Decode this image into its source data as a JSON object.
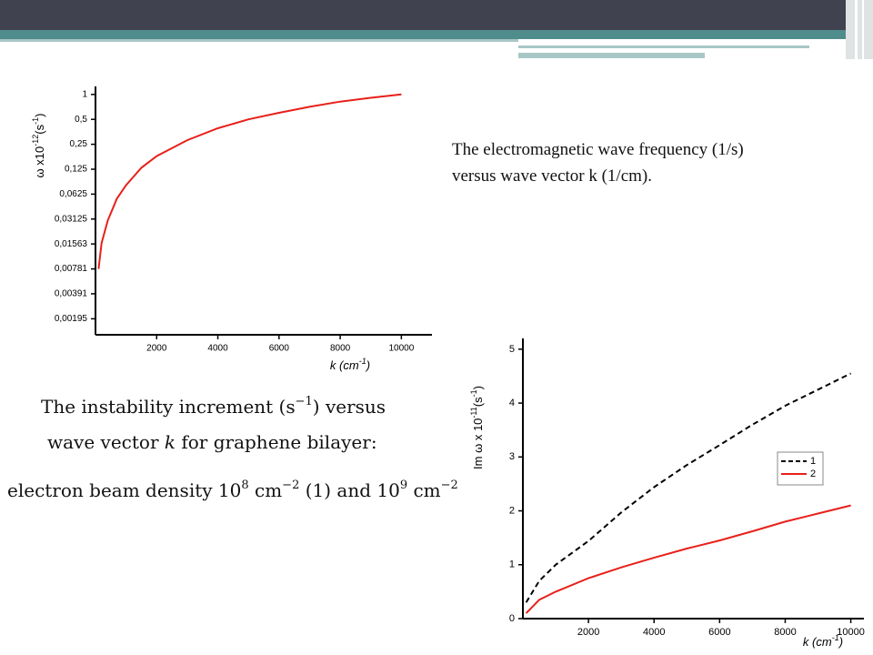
{
  "caption1": {
    "lines": [
      "The electromagnetic wave frequency  (1/s)",
      "versus wave vector k (1/cm)."
    ]
  },
  "caption2": {
    "lines": [
      [
        "The instability increment (s",
        "−1",
        ") versus"
      ],
      [
        "wave vector ",
        "k",
        " for graphene bilayer:"
      ],
      [
        "electron beam density 10",
        "8",
        " cm",
        "−2",
        " (1) and 10",
        "9",
        " cm",
        "−2"
      ]
    ]
  },
  "chart_data": [
    {
      "type": "line",
      "yscale": "log",
      "color": "#e8201a",
      "x": [
        100,
        200,
        400,
        700,
        1000,
        1500,
        2000,
        3000,
        4000,
        5000,
        6000,
        7000,
        8000,
        9000,
        10000
      ],
      "values": [
        0.0078,
        0.016,
        0.03,
        0.055,
        0.08,
        0.13,
        0.18,
        0.28,
        0.39,
        0.5,
        0.6,
        0.71,
        0.82,
        0.91,
        1.0
      ],
      "xlim": [
        0,
        11000
      ],
      "ylim": [
        0.00125,
        1.25
      ],
      "xticks": [
        2000,
        4000,
        6000,
        8000,
        10000
      ],
      "yticks": [
        {
          "value": 0.00195,
          "label": "0,00195"
        },
        {
          "value": 0.00391,
          "label": "0,00391"
        },
        {
          "value": 0.00781,
          "label": "0,00781"
        },
        {
          "value": 0.01563,
          "label": "0,01563"
        },
        {
          "value": 0.03125,
          "label": "0,03125"
        },
        {
          "value": 0.0625,
          "label": "0,0625"
        },
        {
          "value": 0.125,
          "label": "0,125"
        },
        {
          "value": 0.25,
          "label": "0,25"
        },
        {
          "value": 0.5,
          "label": "0,5"
        },
        1
      ],
      "xlabel": [
        "k (cm",
        "-1",
        ")"
      ],
      "ylabel": [
        "ω x10",
        "-12",
        "(s",
        "-1",
        ")"
      ]
    },
    {
      "type": "line",
      "legend": "right",
      "x": [
        100,
        500,
        1000,
        2000,
        3000,
        4000,
        5000,
        6000,
        7000,
        8000,
        9000,
        10000
      ],
      "series": [
        {
          "name": "1",
          "color": "#000000",
          "line_style": "dashed",
          "values": [
            0.3,
            0.7,
            1.0,
            1.44,
            1.97,
            2.44,
            2.85,
            3.22,
            3.6,
            3.95,
            4.25,
            4.55
          ]
        },
        {
          "name": "2",
          "color": "#e8201a",
          "line_style": "solid",
          "values": [
            0.1,
            0.35,
            0.5,
            0.75,
            0.95,
            1.13,
            1.3,
            1.45,
            1.62,
            1.8,
            1.95,
            2.1
          ]
        }
      ],
      "xlim": [
        0,
        10400
      ],
      "ylim": [
        0,
        5.2
      ],
      "xticks": [
        2000,
        4000,
        6000,
        8000,
        10000
      ],
      "yticks": [
        0,
        1,
        2,
        3,
        4,
        5
      ],
      "xlabel": [
        "k (cm",
        "-1",
        ")"
      ],
      "ylabel": [
        "Im ω x 10",
        "-11",
        "(s",
        "-1",
        ")"
      ]
    }
  ]
}
